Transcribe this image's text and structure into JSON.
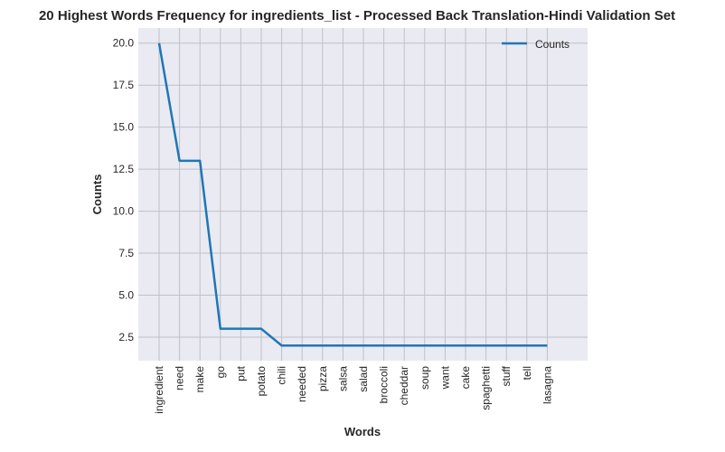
{
  "chart_data": {
    "type": "line",
    "title": "20 Highest Words Frequency for ingredients_list - Processed Back Translation-Hindi Validation Set",
    "xlabel": "Words",
    "ylabel": "Counts",
    "categories": [
      "ingredient",
      "need",
      "make",
      "go",
      "put",
      "potato",
      "chili",
      "needed",
      "pizza",
      "salsa",
      "salad",
      "broccoli",
      "cheddar",
      "soup",
      "want",
      "cake",
      "spaghetti",
      "stuff",
      "tell",
      "lasagna"
    ],
    "series": [
      {
        "name": "Counts",
        "values": [
          20,
          13,
          13,
          3,
          3,
          3,
          2,
          2,
          2,
          2,
          2,
          2,
          2,
          2,
          2,
          2,
          2,
          2,
          2,
          2
        ],
        "color": "#1f77b4"
      }
    ],
    "ylim": [
      1.1,
      20.9
    ],
    "yticks": [
      2.5,
      5.0,
      7.5,
      10.0,
      12.5,
      15.0,
      17.5,
      20.0
    ],
    "ytick_labels": [
      "2.5",
      "5.0",
      "7.5",
      "10.0",
      "12.5",
      "15.0",
      "17.5",
      "20.0"
    ],
    "grid": true,
    "legend": "top-right",
    "background_color": "#eaeaf2",
    "grid_color": "#c0c0c8"
  }
}
